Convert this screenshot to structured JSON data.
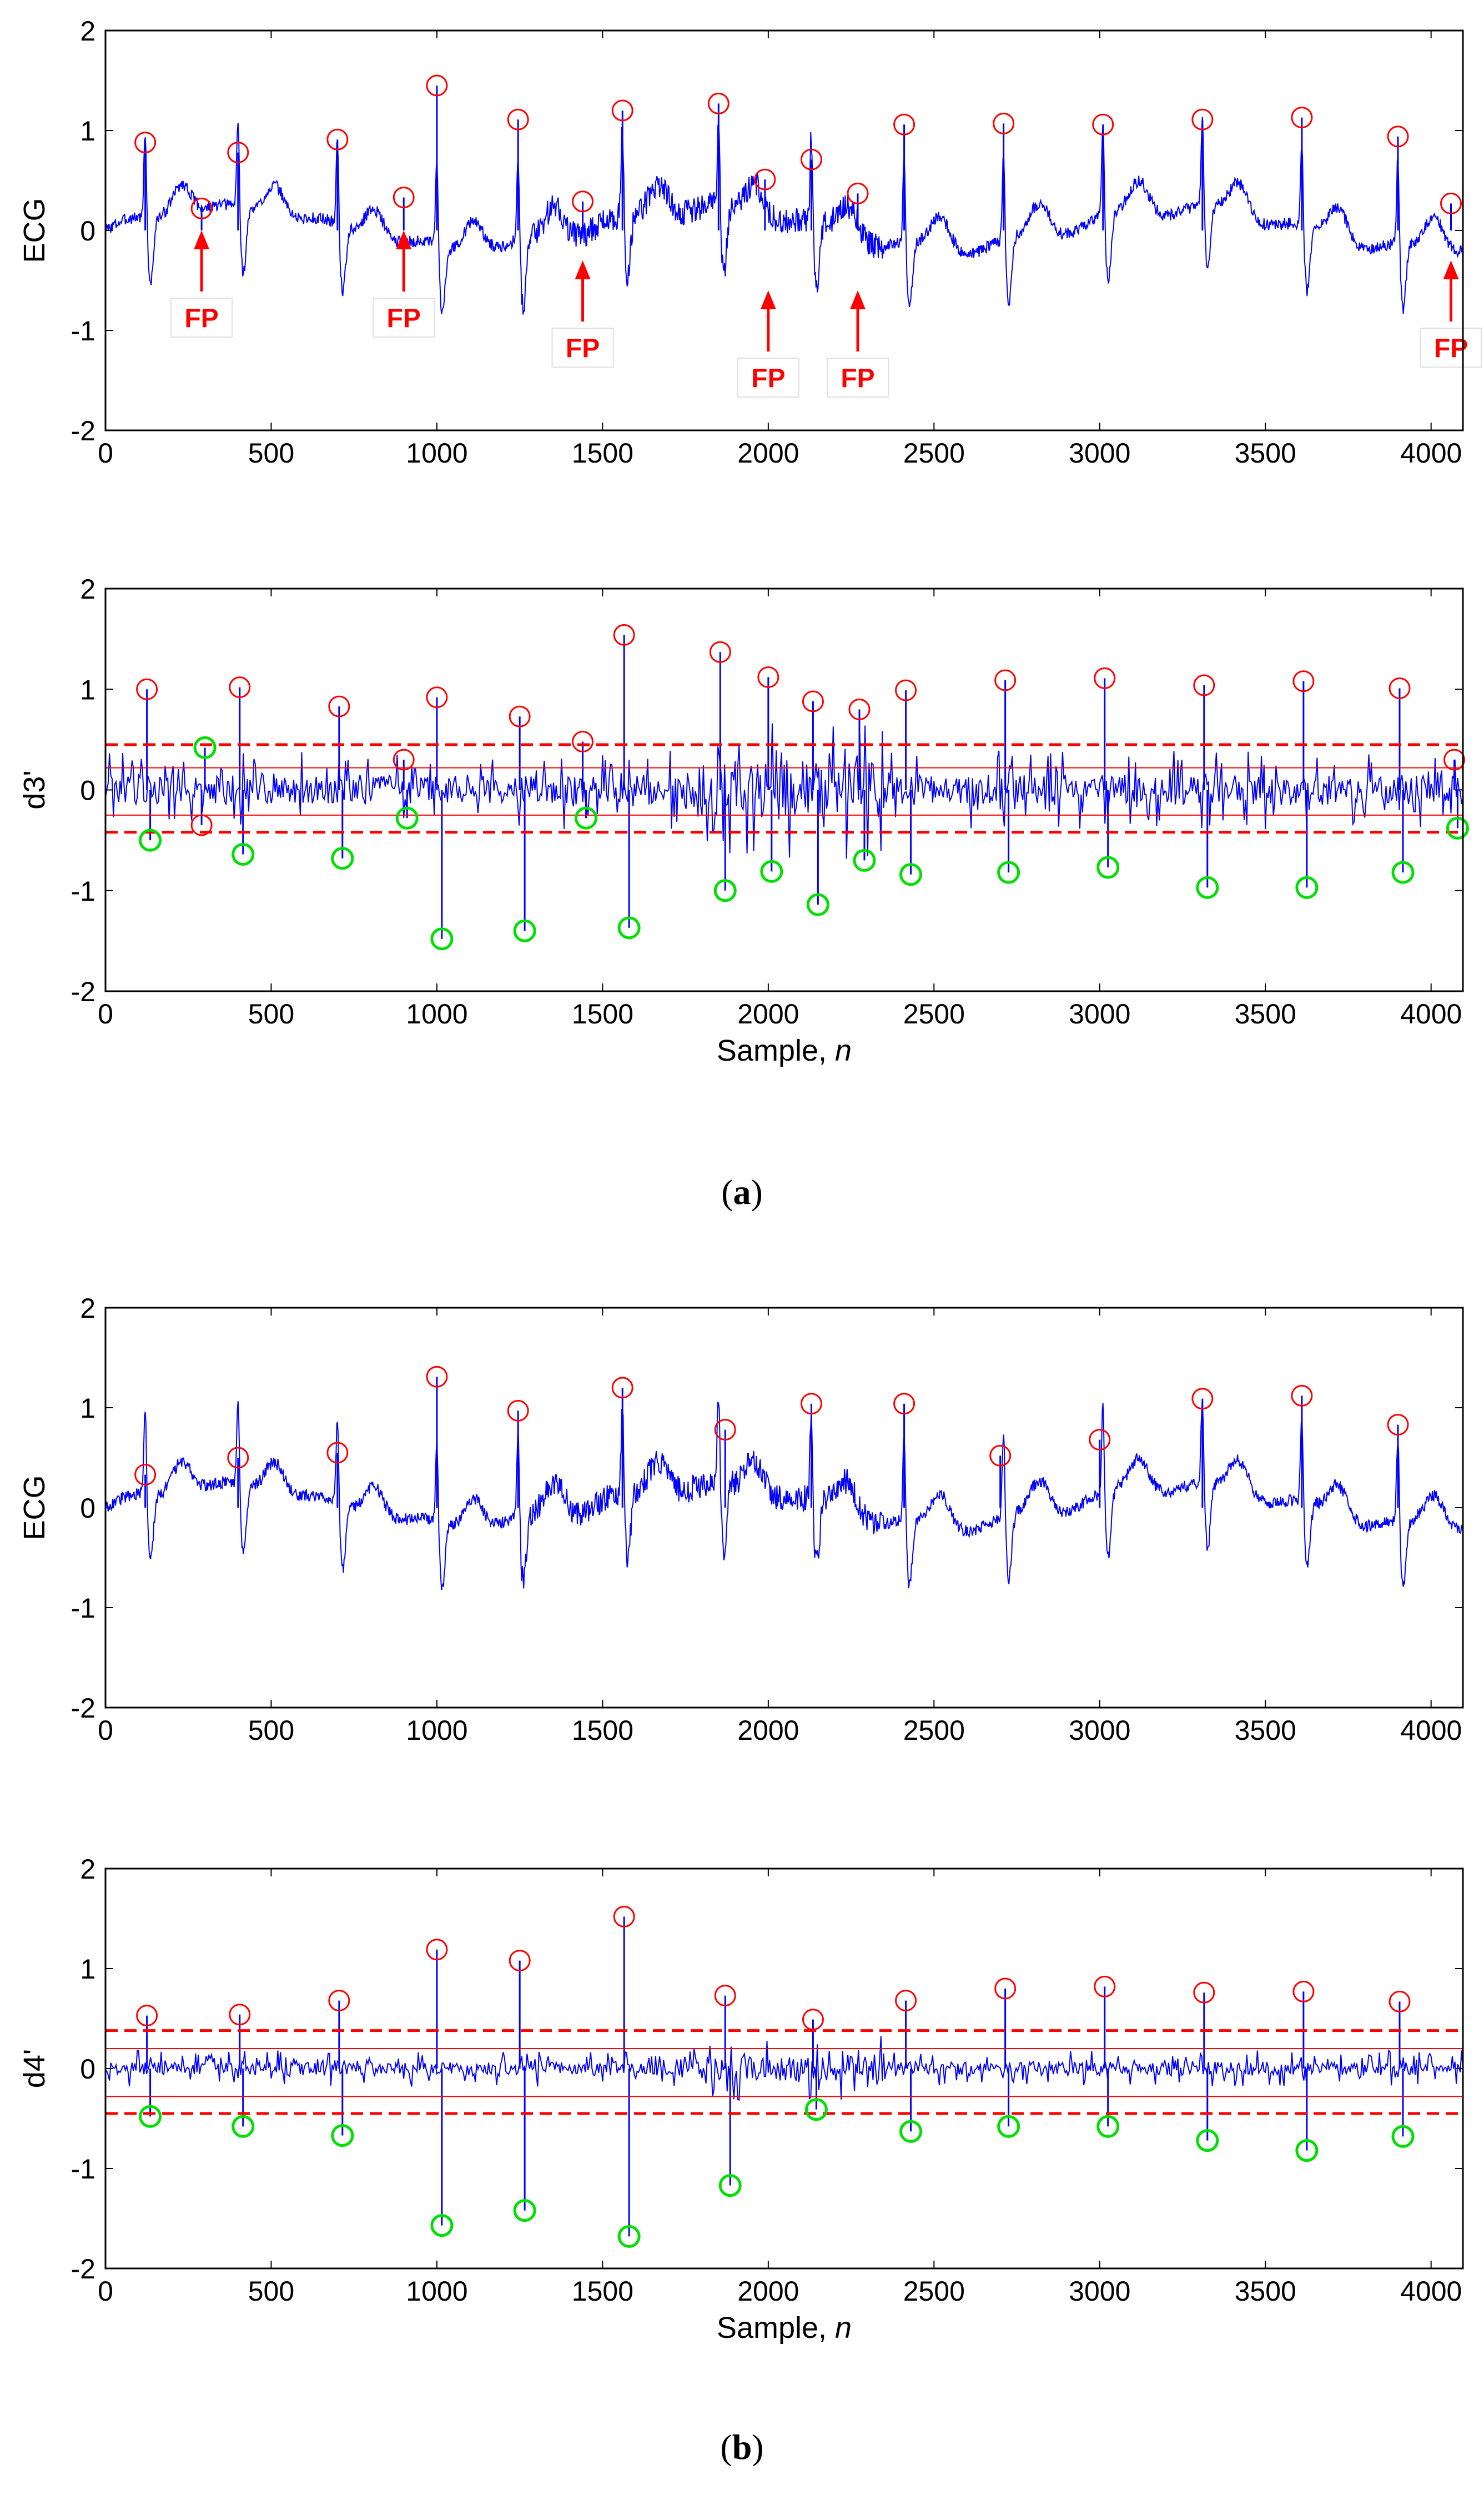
{
  "figure": {
    "panel_a_label": {
      "open": "(",
      "letter": "a",
      "close": ")"
    },
    "panel_b_label": {
      "open": "(",
      "letter": "b",
      "close": ")"
    }
  },
  "colors": {
    "signal": "#0000ff",
    "r_peak": "#ff0000",
    "min_peak": "#00e000",
    "threshold": "#ff0000",
    "fp_label": "#ff0000"
  },
  "chart_data": [
    {
      "id": "a-ecg",
      "type": "line",
      "title": "",
      "xlabel": "",
      "ylabel": "ECG",
      "xlim": [
        0,
        4096
      ],
      "ylim": [
        -2,
        2
      ],
      "xticks": [
        0,
        500,
        1000,
        1500,
        2000,
        2500,
        3000,
        3500,
        4000
      ],
      "yticks": [
        -2,
        -1,
        0,
        1,
        2
      ],
      "beats": [
        120,
        400,
        700,
        1000,
        1245,
        1560,
        1850,
        2130,
        2410,
        2710,
        3010,
        3310,
        3610,
        3900
      ],
      "noise_level": 0.12,
      "red_markers": {
        "x": [
          120,
          290,
          400,
          700,
          900,
          1000,
          1245,
          1440,
          1560,
          1850,
          1990,
          2130,
          2270,
          2410,
          2710,
          3010,
          3310,
          3610,
          3900,
          4060
        ],
        "y": [
          0.88,
          0.22,
          0.78,
          0.91,
          0.33,
          1.45,
          1.11,
          0.29,
          1.2,
          1.27,
          0.51,
          0.71,
          0.37,
          1.06,
          1.07,
          1.06,
          1.11,
          1.13,
          0.94,
          0.27
        ]
      },
      "annotations": [
        {
          "text": "FP",
          "x": 290,
          "arrow_tip": 0.0
        },
        {
          "text": "FP",
          "x": 900,
          "arrow_tip": 0.0
        },
        {
          "text": "FP",
          "x": 1440,
          "arrow_tip": -0.3
        },
        {
          "text": "FP",
          "x": 2000,
          "arrow_tip": -0.6
        },
        {
          "text": "FP",
          "x": 2270,
          "arrow_tip": -0.6
        },
        {
          "text": "FP",
          "x": 4060,
          "arrow_tip": -0.3
        }
      ]
    },
    {
      "id": "a-d3",
      "type": "line",
      "title": "",
      "xlabel": "Sample, ",
      "xlabel_var": "n",
      "ylabel": "d3'",
      "xlim": [
        0,
        4096
      ],
      "ylim": [
        -2,
        2
      ],
      "xticks": [
        0,
        500,
        1000,
        1500,
        2000,
        2500,
        3000,
        3500,
        4000
      ],
      "yticks": [
        -2,
        -1,
        0,
        1,
        2
      ],
      "beats": [
        120,
        400,
        700,
        1000,
        1245,
        1560,
        1850,
        2130,
        2410,
        2710,
        3010,
        3310,
        3610,
        3900
      ],
      "noise_level": 0.3,
      "thresholds": {
        "upper": 0.45,
        "upper_mean": 0.22,
        "lower_mean": -0.25,
        "lower": -0.42
      },
      "red_markers": {
        "x": [
          125,
          290,
          405,
          705,
          900,
          1000,
          1250,
          1440,
          1565,
          1855,
          2000,
          2135,
          2275,
          2415,
          2715,
          3015,
          3315,
          3615,
          3905,
          4070
        ],
        "y": [
          1.0,
          -0.35,
          1.02,
          0.83,
          0.3,
          0.92,
          0.73,
          0.48,
          1.54,
          1.37,
          1.12,
          0.88,
          0.8,
          0.99,
          1.09,
          1.11,
          1.04,
          1.08,
          1.01,
          0.3
        ]
      },
      "green_markers": {
        "x": [
          135,
          300,
          415,
          715,
          910,
          1015,
          1265,
          1450,
          1580,
          1870,
          2010,
          2150,
          2290,
          2430,
          2725,
          3025,
          3325,
          3625,
          3915,
          4080
        ],
        "y": [
          -0.5,
          0.42,
          -0.64,
          -0.68,
          -0.28,
          -1.48,
          -1.4,
          -0.28,
          -1.37,
          -1.0,
          -0.81,
          -1.14,
          -0.7,
          -0.84,
          -0.82,
          -0.77,
          -0.97,
          -0.97,
          -0.82,
          -0.38
        ]
      }
    },
    {
      "id": "b-ecg",
      "type": "line",
      "title": "",
      "xlabel": "",
      "ylabel": "ECG",
      "xlim": [
        0,
        4096
      ],
      "ylim": [
        -2,
        2
      ],
      "xticks": [
        0,
        500,
        1000,
        1500,
        2000,
        2500,
        3000,
        3500,
        4000
      ],
      "yticks": [
        -2,
        -1,
        0,
        1,
        2
      ],
      "beats": [
        120,
        400,
        700,
        1000,
        1245,
        1560,
        1850,
        2130,
        2410,
        2710,
        3010,
        3310,
        3610,
        3900
      ],
      "noise_level": 0.12,
      "red_markers": {
        "x": [
          120,
          400,
          700,
          1000,
          1245,
          1560,
          1870,
          2130,
          2410,
          2700,
          3000,
          3310,
          3610,
          3900
        ],
        "y": [
          0.33,
          0.5,
          0.55,
          1.31,
          0.97,
          1.2,
          0.78,
          1.04,
          1.04,
          0.52,
          0.68,
          1.09,
          1.12,
          0.83
        ]
      },
      "annotations": []
    },
    {
      "id": "b-d4",
      "type": "line",
      "title": "",
      "xlabel": "Sample, ",
      "xlabel_var": "n",
      "ylabel": "d4'",
      "xlim": [
        0,
        4096
      ],
      "ylim": [
        -2,
        2
      ],
      "xticks": [
        0,
        500,
        1000,
        1500,
        2000,
        2500,
        3000,
        3500,
        4000
      ],
      "yticks": [
        -2,
        -1,
        0,
        1,
        2
      ],
      "beats": [
        120,
        400,
        700,
        1000,
        1245,
        1560,
        1850,
        2130,
        2410,
        2710,
        3010,
        3310,
        3610,
        3900
      ],
      "noise_level": 0.14,
      "thresholds": {
        "upper": 0.38,
        "upper_mean": 0.2,
        "lower_mean": -0.28,
        "lower": -0.45
      },
      "red_markers": {
        "x": [
          125,
          405,
          705,
          1000,
          1250,
          1565,
          1870,
          2135,
          2415,
          2715,
          3015,
          3315,
          3615,
          3905
        ],
        "y": [
          0.53,
          0.54,
          0.68,
          1.19,
          1.08,
          1.52,
          0.73,
          0.49,
          0.68,
          0.8,
          0.82,
          0.76,
          0.77,
          0.67
        ]
      },
      "green_markers": {
        "x": [
          135,
          415,
          715,
          1015,
          1265,
          1580,
          1885,
          2145,
          2430,
          2725,
          3025,
          3325,
          3625,
          3915
        ],
        "y": [
          -0.48,
          -0.58,
          -0.67,
          -1.57,
          -1.42,
          -1.68,
          -1.17,
          -0.41,
          -0.63,
          -0.58,
          -0.58,
          -0.72,
          -0.82,
          -0.68
        ]
      }
    }
  ]
}
